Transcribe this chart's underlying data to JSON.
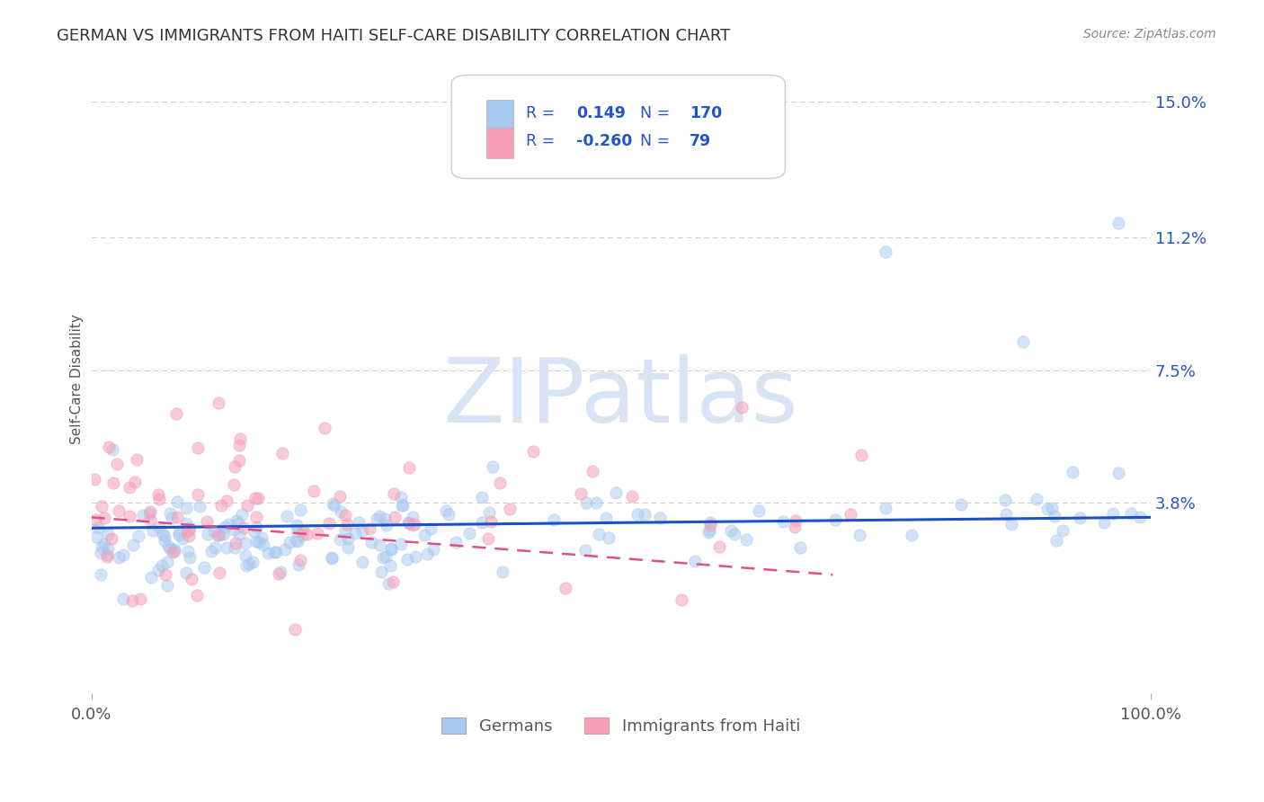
{
  "title": "GERMAN VS IMMIGRANTS FROM HAITI SELF-CARE DISABILITY CORRELATION CHART",
  "source": "Source: ZipAtlas.com",
  "ylabel": "Self-Care Disability",
  "watermark": "ZIPatlas",
  "xlim": [
    0.0,
    1.0
  ],
  "ylim": [
    -0.015,
    0.16
  ],
  "xticklabels": [
    "0.0%",
    "100.0%"
  ],
  "ytick_positions": [
    0.038,
    0.075,
    0.112,
    0.15
  ],
  "ytick_labels": [
    "3.8%",
    "7.5%",
    "11.2%",
    "15.0%"
  ],
  "r_german": "0.149",
  "n_german": "170",
  "r_haiti": "-0.260",
  "n_haiti": "79",
  "german_color": "#a8c8f0",
  "haiti_color": "#f5a0b8",
  "trend_german_color": "#1a50c8",
  "trend_haiti_color": "#e05080",
  "background_color": "#ffffff",
  "grid_color": "#cccccc",
  "title_color": "#333333",
  "axis_color": "#555555",
  "legend_text_color": "#2255cc",
  "watermark_color": "#d8e4f4",
  "seed": 7
}
